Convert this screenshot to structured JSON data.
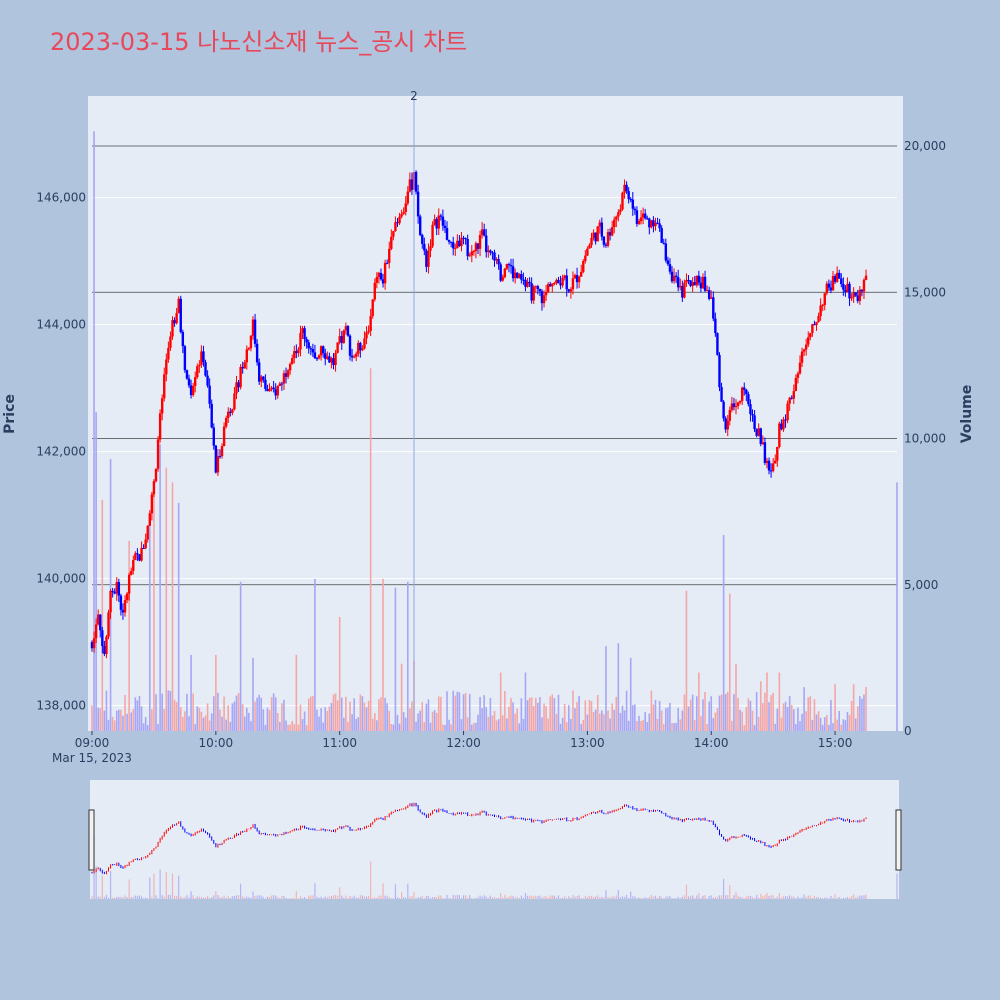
{
  "title": "2023-03-15 나노신소재 뉴스_공시 차트",
  "colors": {
    "page_bg": "#b0c4de",
    "plot_bg": "#e5ecf6",
    "up": "#ff0000",
    "down": "#0000ff",
    "up_volume": "#f4a6a6",
    "down_volume": "#a6a6f4",
    "title": "#e8485a",
    "marker_line": "#8fa6e6"
  },
  "chart_data": {
    "type": "candlestick",
    "title": "2023-03-15 나노신소재 뉴스_공시 차트",
    "date_label": "Mar 15, 2023",
    "xlabel": "",
    "ylabel": "Price",
    "y2label": "Volume",
    "x_range": [
      "09:00",
      "15:30"
    ],
    "x_ticks": [
      "09:00",
      "10:00",
      "11:00",
      "12:00",
      "13:00",
      "14:00",
      "15:00"
    ],
    "price_range": [
      137600,
      147600
    ],
    "price_ticks": [
      138000,
      140000,
      142000,
      144000,
      146000
    ],
    "price_tick_labels": [
      "138,000",
      "140,000",
      "142,000",
      "144,000",
      "146,000"
    ],
    "volume_range": [
      0,
      20000
    ],
    "volume_ticks": [
      0,
      5000,
      10000,
      15000,
      20000
    ],
    "volume_tick_labels": [
      "0",
      "5,000",
      "10,000",
      "15,000",
      "20,000"
    ],
    "annotations": [
      {
        "time": "11:36",
        "text": "2"
      }
    ],
    "price_path": [
      [
        "09:00",
        139000
      ],
      [
        "09:03",
        139500
      ],
      [
        "09:06",
        138800
      ],
      [
        "09:09",
        139700
      ],
      [
        "09:12",
        139900
      ],
      [
        "09:15",
        139400
      ],
      [
        "09:18",
        140000
      ],
      [
        "09:21",
        140300
      ],
      [
        "09:24",
        140400
      ],
      [
        "09:27",
        140800
      ],
      [
        "09:30",
        141500
      ],
      [
        "09:33",
        142500
      ],
      [
        "09:36",
        143400
      ],
      [
        "09:39",
        144000
      ],
      [
        "09:42",
        144400
      ],
      [
        "09:45",
        143200
      ],
      [
        "09:48",
        143000
      ],
      [
        "09:51",
        143400
      ],
      [
        "09:54",
        143500
      ],
      [
        "09:57",
        142700
      ],
      [
        "10:00",
        141700
      ],
      [
        "10:03",
        142200
      ],
      [
        "10:06",
        142700
      ],
      [
        "10:09",
        142800
      ],
      [
        "10:12",
        143300
      ],
      [
        "10:15",
        143600
      ],
      [
        "10:18",
        144000
      ],
      [
        "10:21",
        143200
      ],
      [
        "10:24",
        143000
      ],
      [
        "10:27",
        142900
      ],
      [
        "10:30",
        143000
      ],
      [
        "10:33",
        143200
      ],
      [
        "10:36",
        143500
      ],
      [
        "10:39",
        143600
      ],
      [
        "10:42",
        143900
      ],
      [
        "10:45",
        143700
      ],
      [
        "10:48",
        143400
      ],
      [
        "10:51",
        143700
      ],
      [
        "10:54",
        143500
      ],
      [
        "10:57",
        143400
      ],
      [
        "11:00",
        143700
      ],
      [
        "11:03",
        143900
      ],
      [
        "11:06",
        143500
      ],
      [
        "11:09",
        143600
      ],
      [
        "11:12",
        143800
      ],
      [
        "11:15",
        144100
      ],
      [
        "11:18",
        144800
      ],
      [
        "11:21",
        144700
      ],
      [
        "11:24",
        145200
      ],
      [
        "11:27",
        145500
      ],
      [
        "11:30",
        145700
      ],
      [
        "11:33",
        146100
      ],
      [
        "11:36",
        146300
      ],
      [
        "11:39",
        145400
      ],
      [
        "11:42",
        145000
      ],
      [
        "11:45",
        145500
      ],
      [
        "11:48",
        145700
      ],
      [
        "11:51",
        145500
      ],
      [
        "11:54",
        145200
      ],
      [
        "11:57",
        145300
      ],
      [
        "12:00",
        145300
      ],
      [
        "12:03",
        145100
      ],
      [
        "12:06",
        145200
      ],
      [
        "12:09",
        145400
      ],
      [
        "12:12",
        145100
      ],
      [
        "12:15",
        145000
      ],
      [
        "12:18",
        144800
      ],
      [
        "12:21",
        145000
      ],
      [
        "12:24",
        144800
      ],
      [
        "12:27",
        144700
      ],
      [
        "12:30",
        144600
      ],
      [
        "12:33",
        144500
      ],
      [
        "12:36",
        144500
      ],
      [
        "12:39",
        144400
      ],
      [
        "12:42",
        144700
      ],
      [
        "12:45",
        144600
      ],
      [
        "12:48",
        144800
      ],
      [
        "12:51",
        144600
      ],
      [
        "12:54",
        144700
      ],
      [
        "12:57",
        144900
      ],
      [
        "13:00",
        145200
      ],
      [
        "13:03",
        145400
      ],
      [
        "13:06",
        145500
      ],
      [
        "13:09",
        145300
      ],
      [
        "13:12",
        145600
      ],
      [
        "13:15",
        145800
      ],
      [
        "13:18",
        146100
      ],
      [
        "13:21",
        146000
      ],
      [
        "13:24",
        145600
      ],
      [
        "13:27",
        145700
      ],
      [
        "13:30",
        145600
      ],
      [
        "13:33",
        145700
      ],
      [
        "13:36",
        145300
      ],
      [
        "13:39",
        145000
      ],
      [
        "13:42",
        144700
      ],
      [
        "13:45",
        144500
      ],
      [
        "13:48",
        144600
      ],
      [
        "13:51",
        144700
      ],
      [
        "13:54",
        144700
      ],
      [
        "13:57",
        144600
      ],
      [
        "14:00",
        144400
      ],
      [
        "14:03",
        143500
      ],
      [
        "14:06",
        142400
      ],
      [
        "14:09",
        142600
      ],
      [
        "14:12",
        142800
      ],
      [
        "14:15",
        142900
      ],
      [
        "14:18",
        142800
      ],
      [
        "14:21",
        142400
      ],
      [
        "14:24",
        142200
      ],
      [
        "14:27",
        141800
      ],
      [
        "14:30",
        141700
      ],
      [
        "14:33",
        142400
      ],
      [
        "14:36",
        142600
      ],
      [
        "14:39",
        142900
      ],
      [
        "14:42",
        143300
      ],
      [
        "14:45",
        143600
      ],
      [
        "14:48",
        143800
      ],
      [
        "14:51",
        144100
      ],
      [
        "14:54",
        144400
      ],
      [
        "14:57",
        144600
      ],
      [
        "15:00",
        144700
      ],
      [
        "15:03",
        144700
      ],
      [
        "15:06",
        144600
      ],
      [
        "15:09",
        144400
      ],
      [
        "15:12",
        144500
      ],
      [
        "15:15",
        144800
      ]
    ],
    "volume_spikes": [
      [
        "09:01",
        20500
      ],
      [
        "09:02",
        10900
      ],
      [
        "09:05",
        7900
      ],
      [
        "09:09",
        9300
      ],
      [
        "09:18",
        6500
      ],
      [
        "09:28",
        7200
      ],
      [
        "09:30",
        8500
      ],
      [
        "09:33",
        9800
      ],
      [
        "09:36",
        9000
      ],
      [
        "09:39",
        8500
      ],
      [
        "09:42",
        7800
      ],
      [
        "09:48",
        2600
      ],
      [
        "10:00",
        2600
      ],
      [
        "10:12",
        5100
      ],
      [
        "10:18",
        2500
      ],
      [
        "10:39",
        2600
      ],
      [
        "10:48",
        5200
      ],
      [
        "11:00",
        3900
      ],
      [
        "11:15",
        12400
      ],
      [
        "11:21",
        5200
      ],
      [
        "11:27",
        4900
      ],
      [
        "11:30",
        2300
      ],
      [
        "11:33",
        5100
      ],
      [
        "11:36",
        2400
      ],
      [
        "12:18",
        2000
      ],
      [
        "12:30",
        2000
      ],
      [
        "13:09",
        2900
      ],
      [
        "13:15",
        3000
      ],
      [
        "13:21",
        2500
      ],
      [
        "13:48",
        4800
      ],
      [
        "13:54",
        2000
      ],
      [
        "14:06",
        6700
      ],
      [
        "14:09",
        4700
      ],
      [
        "14:12",
        2300
      ],
      [
        "14:24",
        1700
      ],
      [
        "14:27",
        2000
      ],
      [
        "14:33",
        2000
      ],
      [
        "14:45",
        1500
      ],
      [
        "15:00",
        1600
      ],
      [
        "15:09",
        1600
      ],
      [
        "15:15",
        1500
      ],
      [
        "15:30",
        8500
      ]
    ]
  }
}
